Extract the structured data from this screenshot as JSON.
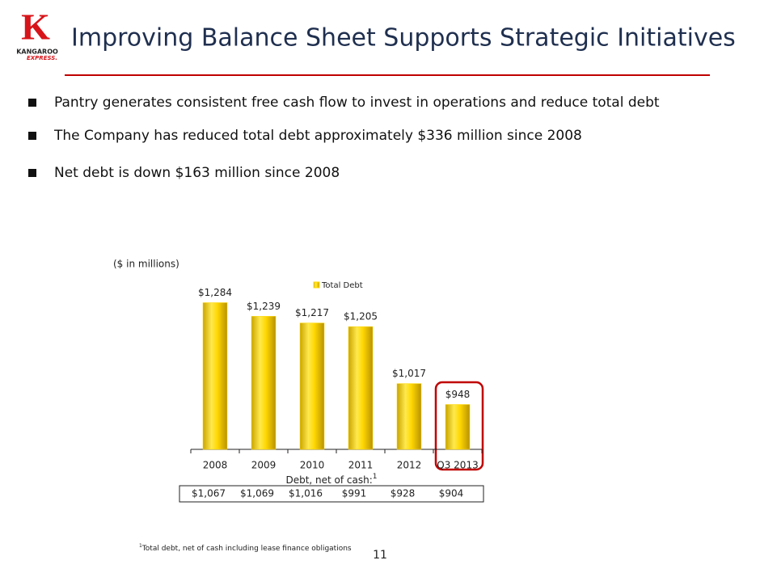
{
  "logo": {
    "letter": "K",
    "line1": "KANGAROO",
    "line2": "EXPRESS."
  },
  "title": "Improving Balance Sheet Supports Strategic Initiatives",
  "bullets": [
    "Pantry generates consistent free cash flow to invest in operations and reduce total debt",
    "The Company has reduced total debt approximately $336 million since 2008",
    "Net debt is down $163 million since 2008"
  ],
  "chart_data": {
    "type": "bar",
    "unit_note": "($ in millions)",
    "categories": [
      "2008",
      "2009",
      "2010",
      "2011",
      "2012",
      "Q3 2013"
    ],
    "series": [
      {
        "name": "Total Debt",
        "color": "#ffd700",
        "values": [
          1284,
          1239,
          1217,
          1205,
          1017,
          948
        ],
        "value_labels": [
          "$1,284",
          "$1,239",
          "$1,217",
          "$1,205",
          "$1,017",
          "$948"
        ]
      }
    ],
    "ylim": [
      800,
      1300
    ],
    "legend": "top"
  },
  "net_debt": {
    "label": "Debt, net of cash:",
    "note_mark": "1",
    "values": [
      "$1,067",
      "$1,069",
      "$1,016",
      "$991",
      "$928",
      "$904"
    ]
  },
  "footnote": {
    "mark": "1",
    "text": "Total debt, net of cash including lease finance obligations"
  },
  "page_number": "11"
}
